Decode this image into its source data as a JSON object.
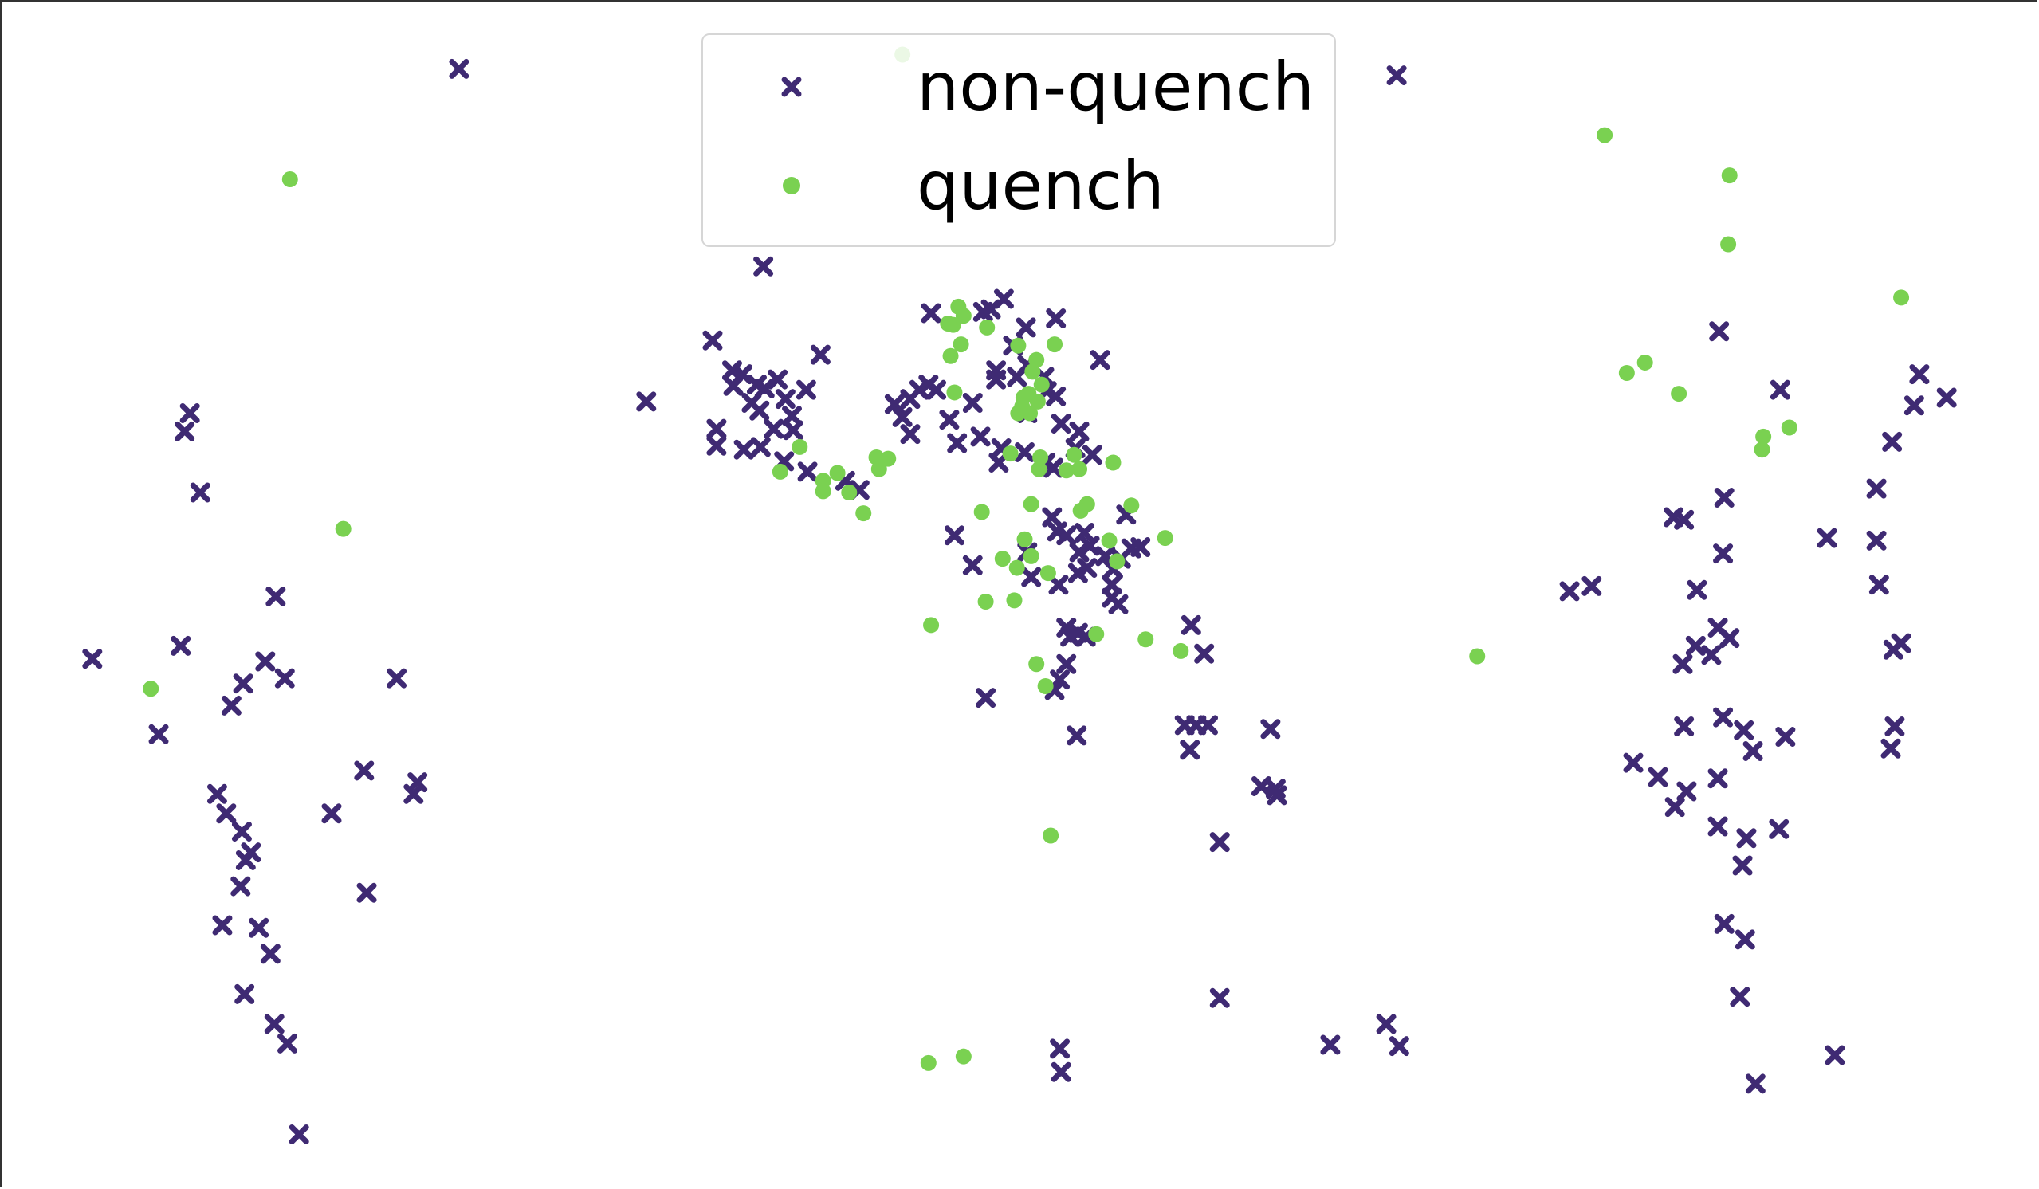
{
  "chart_data": {
    "type": "scatter",
    "title": "",
    "xlabel": "",
    "ylabel": "",
    "axes_visible": false,
    "grid": false,
    "xlim": [
      0,
      1568
    ],
    "ylim": [
      0,
      915
    ],
    "legend_placement": "upper-center",
    "series": [
      {
        "name": "non-quench",
        "marker": "x",
        "color": "#3f2a73",
        "points": [
          [
            353,
            53
          ],
          [
            1074,
            58
          ],
          [
            587,
            205
          ],
          [
            548,
            262
          ],
          [
            497,
            309
          ],
          [
            631,
            273
          ],
          [
            846,
            277
          ],
          [
            146,
            318
          ],
          [
            142,
            332
          ],
          [
            154,
            379
          ],
          [
            212,
            459
          ],
          [
            139,
            497
          ],
          [
            71,
            507
          ],
          [
            204,
            509
          ],
          [
            187,
            526
          ],
          [
            219,
            522
          ],
          [
            305,
            522
          ],
          [
            178,
            543
          ],
          [
            122,
            565
          ],
          [
            280,
            593
          ],
          [
            321,
            602
          ],
          [
            318,
            611
          ],
          [
            167,
            611
          ],
          [
            174,
            626
          ],
          [
            255,
            626
          ],
          [
            186,
            640
          ],
          [
            193,
            656
          ],
          [
            189,
            662
          ],
          [
            185,
            682
          ],
          [
            282,
            687
          ],
          [
            171,
            712
          ],
          [
            199,
            714
          ],
          [
            208,
            734
          ],
          [
            188,
            765
          ],
          [
            211,
            788
          ],
          [
            221,
            803
          ],
          [
            230,
            873
          ],
          [
            563,
            285
          ],
          [
            571,
            288
          ],
          [
            582,
            296
          ],
          [
            588,
            299
          ],
          [
            598,
            292
          ],
          [
            564,
            297
          ],
          [
            578,
            310
          ],
          [
            584,
            316
          ],
          [
            604,
            307
          ],
          [
            620,
            300
          ],
          [
            609,
            320
          ],
          [
            551,
            330
          ],
          [
            595,
            330
          ],
          [
            551,
            343
          ],
          [
            572,
            346
          ],
          [
            585,
            344
          ],
          [
            603,
            355
          ],
          [
            621,
            363
          ],
          [
            650,
            370
          ],
          [
            661,
            377
          ],
          [
            610,
            331
          ],
          [
            688,
            311
          ],
          [
            700,
            307
          ],
          [
            707,
            300
          ],
          [
            714,
            296
          ],
          [
            720,
            300
          ],
          [
            694,
            321
          ],
          [
            700,
            334
          ],
          [
            730,
            323
          ],
          [
            748,
            310
          ],
          [
            716,
            241
          ],
          [
            756,
            240
          ],
          [
            762,
            238
          ],
          [
            772,
            230
          ],
          [
            789,
            252
          ],
          [
            812,
            245
          ],
          [
            779,
            266
          ],
          [
            766,
            285
          ],
          [
            766,
            292
          ],
          [
            782,
            290
          ],
          [
            790,
            281
          ],
          [
            803,
            290
          ],
          [
            805,
            301
          ],
          [
            812,
            305
          ],
          [
            790,
            318
          ],
          [
            816,
            326
          ],
          [
            830,
            332
          ],
          [
            736,
            341
          ],
          [
            754,
            336
          ],
          [
            770,
            345
          ],
          [
            768,
            356
          ],
          [
            788,
            348
          ],
          [
            804,
            356
          ],
          [
            840,
            350
          ],
          [
            827,
            345
          ],
          [
            810,
            360
          ],
          [
            734,
            412
          ],
          [
            748,
            435
          ],
          [
            809,
            398
          ],
          [
            813,
            409
          ],
          [
            820,
            412
          ],
          [
            834,
            410
          ],
          [
            838,
            420
          ],
          [
            830,
            425
          ],
          [
            850,
            428
          ],
          [
            856,
            438
          ],
          [
            862,
            430
          ],
          [
            870,
            422
          ],
          [
            877,
            421
          ],
          [
            866,
            396
          ],
          [
            790,
            425
          ],
          [
            793,
            444
          ],
          [
            814,
            450
          ],
          [
            829,
            441
          ],
          [
            836,
            437
          ],
          [
            855,
            450
          ],
          [
            860,
            465
          ],
          [
            855,
            460
          ],
          [
            820,
            483
          ],
          [
            823,
            490
          ],
          [
            829,
            487
          ],
          [
            835,
            490
          ],
          [
            820,
            511
          ],
          [
            815,
            523
          ],
          [
            811,
            531
          ],
          [
            758,
            537
          ],
          [
            828,
            566
          ],
          [
            916,
            481
          ],
          [
            926,
            503
          ],
          [
            911,
            558
          ],
          [
            920,
            558
          ],
          [
            929,
            558
          ],
          [
            915,
            577
          ],
          [
            977,
            561
          ],
          [
            970,
            605
          ],
          [
            981,
            607
          ],
          [
            982,
            612
          ],
          [
            938,
            648
          ],
          [
            938,
            768
          ],
          [
            815,
            807
          ],
          [
            816,
            825
          ],
          [
            1023,
            804
          ],
          [
            1066,
            788
          ],
          [
            1076,
            805
          ],
          [
            1322,
            255
          ],
          [
            1369,
            300
          ],
          [
            1476,
            288
          ],
          [
            1472,
            312
          ],
          [
            1497,
            306
          ],
          [
            1455,
            340
          ],
          [
            1443,
            376
          ],
          [
            1326,
            383
          ],
          [
            1287,
            398
          ],
          [
            1295,
            400
          ],
          [
            1405,
            414
          ],
          [
            1443,
            416
          ],
          [
            1325,
            426
          ],
          [
            1445,
            450
          ],
          [
            1207,
            455
          ],
          [
            1224,
            451
          ],
          [
            1305,
            454
          ],
          [
            1321,
            483
          ],
          [
            1330,
            491
          ],
          [
            1304,
            497
          ],
          [
            1316,
            504
          ],
          [
            1294,
            511
          ],
          [
            1462,
            495
          ],
          [
            1456,
            500
          ],
          [
            1325,
            552
          ],
          [
            1295,
            559
          ],
          [
            1341,
            562
          ],
          [
            1373,
            567
          ],
          [
            1348,
            578
          ],
          [
            1457,
            559
          ],
          [
            1454,
            576
          ],
          [
            1256,
            587
          ],
          [
            1275,
            598
          ],
          [
            1321,
            599
          ],
          [
            1297,
            609
          ],
          [
            1288,
            621
          ],
          [
            1321,
            636
          ],
          [
            1343,
            645
          ],
          [
            1368,
            638
          ],
          [
            1340,
            666
          ],
          [
            1326,
            711
          ],
          [
            1342,
            723
          ],
          [
            1338,
            767
          ],
          [
            1411,
            812
          ],
          [
            1350,
            834
          ]
        ]
      },
      {
        "name": "quench",
        "marker": "o",
        "color": "#7ad151",
        "points": [
          [
            694,
            42
          ],
          [
            1234,
            104
          ],
          [
            1330,
            135
          ],
          [
            1329,
            188
          ],
          [
            1462,
            229
          ],
          [
            223,
            138
          ],
          [
            264,
            407
          ],
          [
            116,
            530
          ],
          [
            1251,
            287
          ],
          [
            1265,
            279
          ],
          [
            1291,
            303
          ],
          [
            1356,
            336
          ],
          [
            1355,
            346
          ],
          [
            1376,
            329
          ],
          [
            1136,
            505
          ],
          [
            737,
            236
          ],
          [
            741,
            243
          ],
          [
            733,
            250
          ],
          [
            729,
            249
          ],
          [
            759,
            252
          ],
          [
            739,
            265
          ],
          [
            783,
            266
          ],
          [
            811,
            265
          ],
          [
            731,
            274
          ],
          [
            797,
            277
          ],
          [
            794,
            286
          ],
          [
            801,
            296
          ],
          [
            734,
            302
          ],
          [
            787,
            306
          ],
          [
            783,
            318
          ],
          [
            792,
            318
          ],
          [
            798,
            309
          ],
          [
            791,
            303
          ],
          [
            786,
            313
          ],
          [
            777,
            349
          ],
          [
            800,
            352
          ],
          [
            826,
            350
          ],
          [
            799,
            361
          ],
          [
            820,
            362
          ],
          [
            830,
            361
          ],
          [
            856,
            356
          ],
          [
            615,
            344
          ],
          [
            600,
            363
          ],
          [
            633,
            370
          ],
          [
            633,
            378
          ],
          [
            644,
            364
          ],
          [
            653,
            379
          ],
          [
            664,
            395
          ],
          [
            674,
            352
          ],
          [
            683,
            353
          ],
          [
            676,
            361
          ],
          [
            755,
            394
          ],
          [
            793,
            388
          ],
          [
            836,
            388
          ],
          [
            831,
            393
          ],
          [
            870,
            389
          ],
          [
            896,
            414
          ],
          [
            788,
            415
          ],
          [
            853,
            416
          ],
          [
            771,
            430
          ],
          [
            782,
            437
          ],
          [
            793,
            428
          ],
          [
            806,
            441
          ],
          [
            859,
            432
          ],
          [
            758,
            463
          ],
          [
            780,
            462
          ],
          [
            716,
            481
          ],
          [
            843,
            488
          ],
          [
            881,
            492
          ],
          [
            908,
            501
          ],
          [
            797,
            511
          ],
          [
            804,
            528
          ],
          [
            808,
            643
          ],
          [
            714,
            818
          ],
          [
            741,
            813
          ]
        ]
      }
    ]
  }
}
